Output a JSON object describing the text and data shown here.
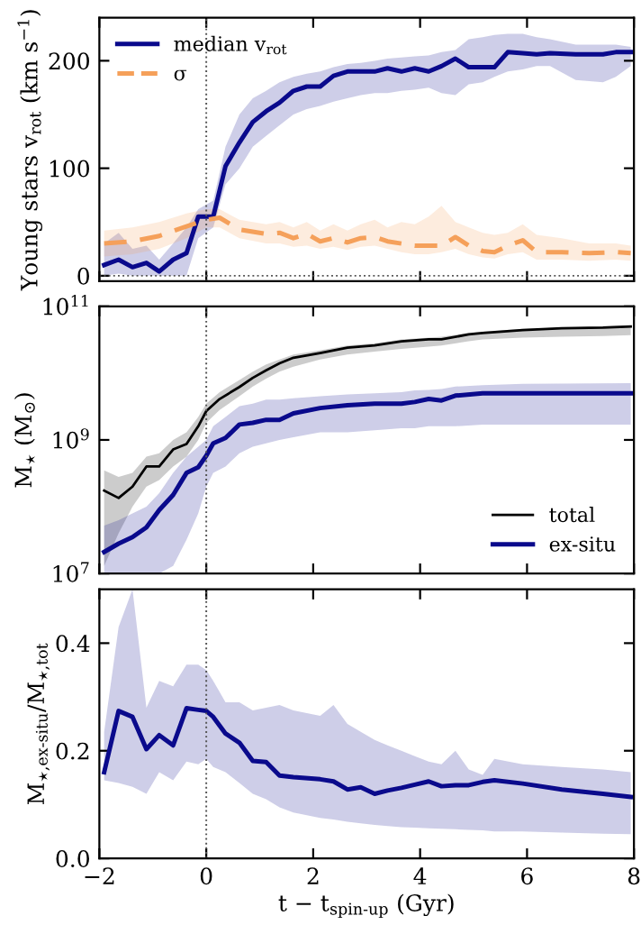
{
  "chart_data": [
    {
      "type": "line",
      "ylabel": "Young stars v$_{rot}$ (km s$^{−1}$)",
      "xlim": [
        -2,
        8
      ],
      "ylim": [
        -5,
        240
      ],
      "xticks": [
        -2,
        0,
        2,
        4,
        6,
        8
      ],
      "yticks": [
        0,
        100,
        200
      ],
      "tick_labels": "y",
      "legend": "top left",
      "grid": false,
      "ref_lines": [
        {
          "axis": "x",
          "value": 0,
          "line_style": "dotted",
          "color": "#555555"
        },
        {
          "axis": "y",
          "value": 0,
          "line_style": "dotted",
          "color": "#555555"
        }
      ],
      "series": [
        {
          "name": "median v$_{rot}$",
          "color": "#0a0a8c",
          "line_style": "solid",
          "x": [
            -1.91,
            -1.64,
            -1.38,
            -1.12,
            -0.88,
            -0.62,
            -0.37,
            -0.15,
            0.13,
            0.36,
            0.62,
            0.87,
            1.12,
            1.37,
            1.63,
            1.88,
            2.13,
            2.38,
            2.64,
            2.89,
            3.15,
            3.39,
            3.65,
            3.9,
            4.16,
            4.4,
            4.66,
            4.91,
            5.17,
            5.39,
            5.64,
            5.92,
            6.18,
            6.43,
            6.91,
            7.42,
            7.66,
            7.94
          ],
          "values": [
            10,
            15,
            8,
            12,
            4,
            15,
            21,
            55,
            55,
            102,
            124,
            143,
            153,
            161,
            172,
            176,
            176,
            186,
            190,
            190,
            190,
            193,
            190,
            193,
            190,
            195,
            202,
            194,
            194,
            194,
            208,
            207,
            206,
            207,
            206,
            206,
            208,
            208
          ],
          "lower": [
            0,
            2,
            0,
            0,
            0,
            0,
            0,
            35,
            45,
            85,
            100,
            120,
            130,
            140,
            150,
            155,
            158,
            162,
            165,
            168,
            170,
            170,
            172,
            173,
            175,
            170,
            168,
            178,
            180,
            185,
            190,
            192,
            195,
            195,
            182,
            180,
            185,
            195
          ],
          "upper": [
            30,
            40,
            25,
            28,
            15,
            30,
            45,
            62,
            70,
            120,
            150,
            165,
            172,
            180,
            185,
            188,
            190,
            194,
            197,
            198,
            200,
            202,
            203,
            204,
            205,
            208,
            210,
            220,
            222,
            224,
            225,
            225,
            222,
            220,
            215,
            215,
            215,
            213
          ]
        },
        {
          "name": "σ",
          "color": "#f5a05a",
          "line_style": "dashed",
          "x": [
            -1.91,
            -1.38,
            -0.88,
            -0.37,
            0,
            0.25,
            0.62,
            1.12,
            1.37,
            1.63,
            1.88,
            2.13,
            2.38,
            2.64,
            2.89,
            3.15,
            3.39,
            3.65,
            3.9,
            4.16,
            4.4,
            4.66,
            4.91,
            5.17,
            5.39,
            5.64,
            5.92,
            6.18,
            6.65,
            7.16,
            7.66,
            7.94
          ],
          "values": [
            30,
            32,
            37,
            46,
            52,
            54,
            43,
            39,
            40,
            35,
            39,
            32,
            35,
            31,
            35,
            36,
            32,
            30,
            28,
            28,
            28,
            36,
            28,
            23,
            22,
            28,
            33,
            22,
            22,
            21,
            22,
            21
          ],
          "lower": [
            18,
            20,
            25,
            35,
            45,
            45,
            35,
            30,
            30,
            27,
            28,
            25,
            27,
            24,
            27,
            28,
            25,
            22,
            20,
            20,
            22,
            25,
            20,
            17,
            16,
            20,
            22,
            15,
            15,
            14,
            15,
            14
          ],
          "upper": [
            42,
            45,
            50,
            58,
            62,
            62,
            52,
            48,
            50,
            45,
            50,
            42,
            48,
            42,
            48,
            52,
            45,
            50,
            48,
            55,
            65,
            50,
            45,
            40,
            38,
            40,
            48,
            38,
            35,
            30,
            30,
            28
          ]
        }
      ]
    },
    {
      "type": "line",
      "ylabel": "M$_{⋆}$ (M$_{⊙}$)",
      "log": "y",
      "xlim": [
        -2,
        8
      ],
      "ylim": [
        10000000.0,
        100000000000.0
      ],
      "xticks": [
        -2,
        0,
        2,
        4,
        6,
        8
      ],
      "yticks": [
        {
          "value": 10000000.0,
          "label": "10$^{7}$"
        },
        {
          "value": 1000000000.0,
          "label": "10$^{9}$"
        },
        {
          "value": 100000000000.0,
          "label": "10$^{11}$"
        }
      ],
      "tick_labels": "y",
      "legend": "bottom right",
      "grid": false,
      "ref_lines": [
        {
          "axis": "x",
          "value": 0,
          "line_style": "dotted",
          "color": "#555555"
        }
      ],
      "series": [
        {
          "name": "total",
          "color": "#000000",
          "line_style": "solid",
          "x": [
            -1.91,
            -1.64,
            -1.38,
            -1.12,
            -0.88,
            -0.62,
            -0.37,
            -0.15,
            0,
            0.25,
            0.62,
            0.87,
            1.12,
            1.37,
            1.63,
            2.13,
            2.64,
            3.15,
            3.65,
            4.16,
            4.4,
            4.91,
            5.17,
            5.92,
            6.65,
            7.42,
            7.94
          ],
          "values": [
            174000000.0,
            135000000.0,
            200000000.0,
            400000000.0,
            400000000.0,
            720000000.0,
            870000000.0,
            1600000000.0,
            2700000000.0,
            4100000000.0,
            6200000000.0,
            8500000000.0,
            11000000000.0,
            14000000000.0,
            17000000000.0,
            20000000000.0,
            24000000000.0,
            26000000000.0,
            30000000000.0,
            32000000000.0,
            32000000000.0,
            38000000000.0,
            40000000000.0,
            44000000000.0,
            47000000000.0,
            48000000000.0,
            50000000000.0
          ],
          "lower": [
            13000000.0,
            40000000.0,
            100000000.0,
            200000000.0,
            250000000.0,
            400000000.0,
            560000000.0,
            1000000000.0,
            1800000000.0,
            2800000000.0,
            4500000000.0,
            6300000000.0,
            8300000000.0,
            10500000000.0,
            12500000000.0,
            16000000000.0,
            19000000000.0,
            21000000000.0,
            23000000000.0,
            25000000000.0,
            26000000000.0,
            30000000000.0,
            32000000000.0,
            34000000000.0,
            35000000000.0,
            36000000000.0,
            37000000000.0
          ],
          "upper": [
            350000000.0,
            280000000.0,
            320000000.0,
            560000000.0,
            630000000.0,
            1000000000.0,
            1300000000.0,
            2200000000.0,
            3500000000.0,
            5200000000.0,
            7900000000.0,
            10500000000.0,
            13500000000.0,
            16000000000.0,
            19000000000.0,
            22000000000.0,
            26000000000.0,
            28000000000.0,
            32000000000.0,
            34000000000.0,
            35000000000.0,
            40000000000.0,
            42000000000.0,
            46000000000.0,
            48000000000.0,
            50000000000.0,
            52000000000.0
          ]
        },
        {
          "name": "ex-situ",
          "color": "#0a0a8c",
          "line_style": "solid",
          "x": [
            -1.91,
            -1.64,
            -1.38,
            -1.12,
            -0.88,
            -0.62,
            -0.37,
            -0.15,
            0,
            0.13,
            0.36,
            0.62,
            0.87,
            1.12,
            1.37,
            1.63,
            2.13,
            2.64,
            3.15,
            3.65,
            3.9,
            4.16,
            4.4,
            4.66,
            5.17,
            5.92,
            7.94
          ],
          "values": [
            21000000.0,
            28000000.0,
            35000000.0,
            49000000.0,
            89000000.0,
            150000000.0,
            320000000.0,
            390000000.0,
            580000000.0,
            890000000.0,
            1070000000.0,
            1700000000.0,
            1800000000.0,
            2000000000.0,
            2000000000.0,
            2500000000.0,
            3000000000.0,
            3300000000.0,
            3500000000.0,
            3500000000.0,
            3700000000.0,
            4100000000.0,
            3900000000.0,
            4600000000.0,
            5000000000.0,
            5000000000.0,
            5000000000.0
          ],
          "lower": [
            10000000.0,
            10000000.0,
            10000000.0,
            10000000.0,
            10000000.0,
            13000000.0,
            32000000.0,
            79000000.0,
            200000000.0,
            320000000.0,
            400000000.0,
            630000000.0,
            790000000.0,
            890000000.0,
            1000000000.0,
            1100000000.0,
            1300000000.0,
            1300000000.0,
            1400000000.0,
            1500000000.0,
            1500000000.0,
            1600000000.0,
            1600000000.0,
            1600000000.0,
            1700000000.0,
            1700000000.0,
            1700000000.0
          ],
          "upper": [
            52000000.0,
            63000000.0,
            79000000.0,
            100000000.0,
            160000000.0,
            320000000.0,
            560000000.0,
            790000000.0,
            1000000000.0,
            1600000000.0,
            2200000000.0,
            3200000000.0,
            3500000000.0,
            4000000000.0,
            4000000000.0,
            4200000000.0,
            4500000000.0,
            4800000000.0,
            5000000000.0,
            5200000000.0,
            5500000000.0,
            5600000000.0,
            5800000000.0,
            6300000000.0,
            6600000000.0,
            6900000000.0,
            7100000000.0
          ]
        }
      ]
    },
    {
      "type": "line",
      "xlabel": "t − t$_{spin-up}$ (Gyr)",
      "ylabel": "M$_{⋆,ex-situ}$/M$_{⋆,tot}$",
      "xlim": [
        -2,
        8
      ],
      "ylim": [
        0,
        0.5
      ],
      "xticks": [
        {
          "value": -2,
          "label": "−2"
        },
        0,
        2,
        4,
        6,
        8
      ],
      "yticks": [
        {
          "value": 0,
          "label": "0.0"
        },
        0.2,
        0.4
      ],
      "grid": false,
      "ref_lines": [
        {
          "axis": "x",
          "value": 0,
          "line_style": "dotted",
          "color": "#555555"
        }
      ],
      "series": [
        {
          "color": "#0a0a8c",
          "line_style": "solid",
          "x": [
            -1.91,
            -1.64,
            -1.38,
            -1.12,
            -0.88,
            -0.62,
            -0.37,
            -0.15,
            0,
            0.13,
            0.36,
            0.62,
            0.87,
            1.12,
            1.37,
            1.63,
            2.13,
            2.38,
            2.64,
            2.89,
            3.15,
            3.39,
            3.65,
            3.9,
            4.16,
            4.4,
            4.66,
            4.91,
            5.17,
            5.39,
            5.92,
            6.65,
            7.42,
            7.94
          ],
          "values": [
            0.16,
            0.274,
            0.263,
            0.203,
            0.229,
            0.21,
            0.279,
            0.276,
            0.274,
            0.263,
            0.232,
            0.215,
            0.181,
            0.179,
            0.154,
            0.151,
            0.147,
            0.143,
            0.128,
            0.132,
            0.12,
            0.126,
            0.131,
            0.137,
            0.143,
            0.134,
            0.136,
            0.136,
            0.142,
            0.145,
            0.139,
            0.128,
            0.12,
            0.114
          ],
          "lower": [
            0.145,
            0.14,
            0.133,
            0.12,
            0.16,
            0.145,
            0.18,
            0.175,
            0.185,
            0.17,
            0.16,
            0.14,
            0.12,
            0.11,
            0.095,
            0.085,
            0.075,
            0.072,
            0.068,
            0.065,
            0.062,
            0.06,
            0.058,
            0.057,
            0.056,
            0.055,
            0.054,
            0.053,
            0.052,
            0.05,
            0.05,
            0.048,
            0.046,
            0.045
          ],
          "upper": [
            0.235,
            0.43,
            0.5,
            0.28,
            0.33,
            0.32,
            0.36,
            0.36,
            0.35,
            0.33,
            0.29,
            0.29,
            0.275,
            0.28,
            0.285,
            0.275,
            0.265,
            0.285,
            0.25,
            0.235,
            0.22,
            0.21,
            0.2,
            0.19,
            0.18,
            0.175,
            0.2,
            0.165,
            0.155,
            0.185,
            0.175,
            0.17,
            0.165,
            0.16
          ]
        }
      ]
    }
  ]
}
